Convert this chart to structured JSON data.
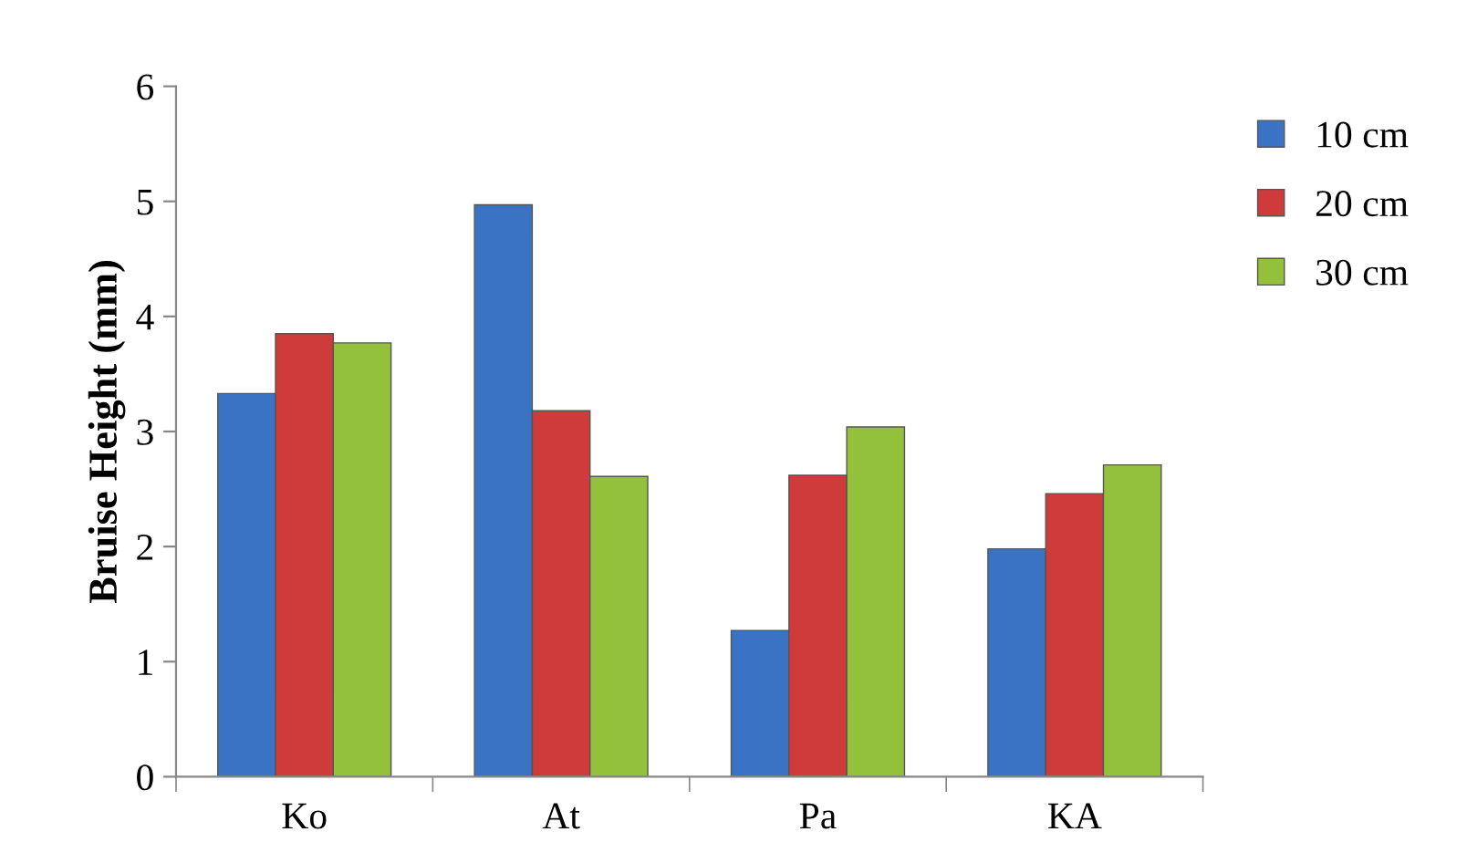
{
  "chart_data": {
    "type": "bar",
    "ylabel": "Bruise Height (mm)",
    "categories": [
      "Ko",
      "At",
      "Pa",
      "KA"
    ],
    "series": [
      {
        "name": "10 cm",
        "color": "#3a73c4",
        "values": [
          3.33,
          4.97,
          1.27,
          1.98
        ]
      },
      {
        "name": "20 cm",
        "color": "#cf3b3b",
        "values": [
          3.85,
          3.18,
          2.62,
          2.46
        ]
      },
      {
        "name": "30 cm",
        "color": "#93c13c",
        "values": [
          3.77,
          2.61,
          3.04,
          2.71
        ]
      }
    ],
    "ylim": [
      0,
      6
    ],
    "yticks": [
      0,
      1,
      2,
      3,
      4,
      5,
      6
    ],
    "grid": false,
    "legend": "right"
  }
}
